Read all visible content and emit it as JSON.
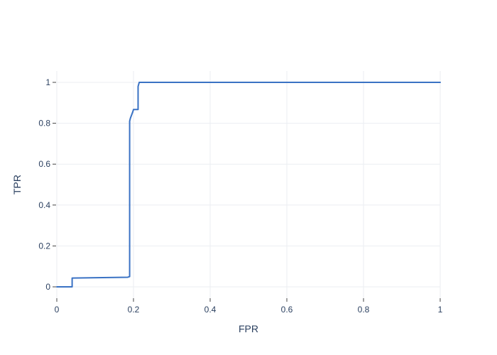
{
  "chart_data": {
    "type": "line",
    "title": "",
    "xlabel": "FPR",
    "ylabel": "TPR",
    "xlim": [
      0,
      1
    ],
    "ylim": [
      0,
      1
    ],
    "x_ticks": [
      0,
      0.2,
      0.4,
      0.6,
      0.8,
      1
    ],
    "x_tick_labels": [
      "0",
      "0.2",
      "0.4",
      "0.6",
      "0.8",
      "1"
    ],
    "y_ticks": [
      0,
      0.2,
      0.4,
      0.6,
      0.8,
      1
    ],
    "y_tick_labels": [
      "0",
      "0.2",
      "0.4",
      "0.6",
      "0.8",
      "1"
    ],
    "grid": true,
    "legend": "none",
    "series": [
      {
        "color": "#3a72c4",
        "x": [
          0,
          0.04,
          0.04,
          0.185,
          0.19,
          0.19,
          0.192,
          0.198,
          0.2,
          0.212,
          0.212,
          0.215,
          1
        ],
        "y": [
          0,
          0,
          0.043,
          0.047,
          0.05,
          0.81,
          0.825,
          0.855,
          0.867,
          0.867,
          0.98,
          1,
          1
        ]
      }
    ]
  }
}
